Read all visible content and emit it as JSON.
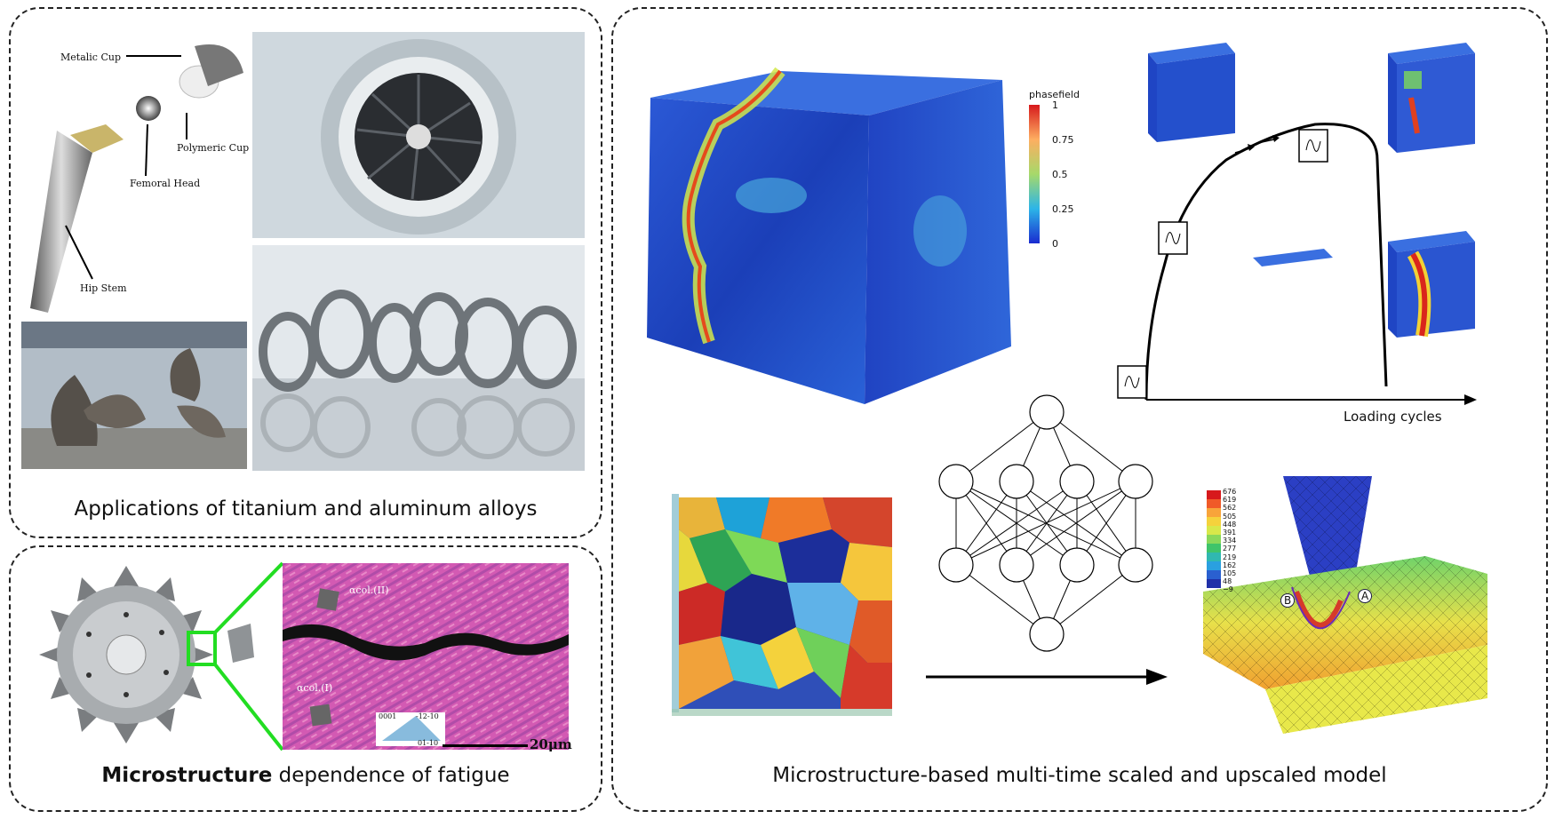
{
  "panels": {
    "applications": {
      "caption": "Applications of titanium and aluminum alloys",
      "hip_labels": {
        "metallic_cup": "Metalic Cup",
        "polymeric_cup": "Polymeric Cup",
        "femoral_head": "Femoral Head",
        "hip_stem": "Hip Stem"
      }
    },
    "microstructure": {
      "caption_bold": "Microstructure",
      "caption_rest": " dependence of fatigue",
      "alpha_label_1": "αcol.(II)",
      "alpha_label_2": "αcol.(I)",
      "ipf_legend": {
        "top_left": "0001",
        "top_right": "-12-10",
        "bottom": "01-10"
      },
      "scale_bar": "20μm"
    },
    "model": {
      "caption": "Microstructure-based multi-time scaled and upscaled model",
      "phasefield_title": "phasefield",
      "phasefield_ticks": [
        "1",
        "0.75",
        "0.5",
        "0.25",
        "0"
      ],
      "loading_axis_label": "Loading cycles",
      "fe_legend_ticks": [
        "676",
        "619",
        "562",
        "505",
        "448",
        "391",
        "334",
        "277",
        "219",
        "162",
        "105",
        "48",
        "−9"
      ],
      "fe_marker_a": "A",
      "fe_marker_b": "B"
    }
  },
  "colors": {
    "green_link": "#22dd22",
    "dashed_border": "#222222"
  }
}
